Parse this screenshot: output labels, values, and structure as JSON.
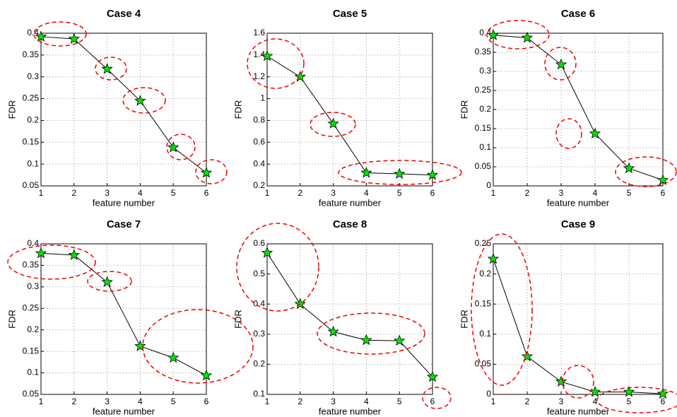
{
  "chart_data": [
    {
      "type": "line",
      "title": "Case 4",
      "xlabel": "feature number",
      "ylabel": "FDR",
      "x": [
        1,
        2,
        3,
        4,
        5,
        6
      ],
      "values": [
        0.392,
        0.387,
        0.318,
        0.245,
        0.138,
        0.08
      ],
      "xlim": [
        1,
        6
      ],
      "ylim": [
        0.05,
        0.4
      ],
      "xticks": [
        1,
        2,
        3,
        4,
        5,
        6
      ],
      "yticks": [
        0.05,
        0.1,
        0.15,
        0.2,
        0.25,
        0.3,
        0.35,
        0.4
      ],
      "grid": true,
      "line_color": "#000000",
      "marker": "star",
      "marker_color": "#00e600"
    },
    {
      "type": "line",
      "title": "Case 5",
      "xlabel": "feature number",
      "ylabel": "FDR",
      "x": [
        1,
        2,
        3,
        4,
        5,
        6
      ],
      "values": [
        1.39,
        1.2,
        0.77,
        0.32,
        0.31,
        0.3
      ],
      "xlim": [
        1,
        6
      ],
      "ylim": [
        0.2,
        1.6
      ],
      "xticks": [
        1,
        2,
        3,
        4,
        5,
        6
      ],
      "yticks": [
        0.2,
        0.4,
        0.6,
        0.8,
        1,
        1.2,
        1.4,
        1.6
      ],
      "grid": true,
      "line_color": "#000000",
      "marker": "star",
      "marker_color": "#00e600"
    },
    {
      "type": "line",
      "title": "Case 6",
      "xlabel": "feature number",
      "ylabel": "FDR",
      "x": [
        1,
        2,
        3,
        4,
        5,
        6
      ],
      "values": [
        0.395,
        0.388,
        0.318,
        0.137,
        0.046,
        0.015
      ],
      "xlim": [
        1,
        6
      ],
      "ylim": [
        0,
        0.4
      ],
      "xticks": [
        1,
        2,
        3,
        4,
        5,
        6
      ],
      "yticks": [
        0,
        0.05,
        0.1,
        0.15,
        0.2,
        0.25,
        0.3,
        0.35,
        0.4
      ],
      "grid": true,
      "line_color": "#000000",
      "marker": "star",
      "marker_color": "#00e600"
    },
    {
      "type": "line",
      "title": "Case 7",
      "xlabel": "feature number",
      "ylabel": "FDR",
      "x": [
        1,
        2,
        3,
        4,
        5,
        6
      ],
      "values": [
        0.378,
        0.374,
        0.311,
        0.162,
        0.135,
        0.094
      ],
      "xlim": [
        1,
        6
      ],
      "ylim": [
        0.05,
        0.4
      ],
      "xticks": [
        1,
        2,
        3,
        4,
        5,
        6
      ],
      "yticks": [
        0.05,
        0.1,
        0.15,
        0.2,
        0.25,
        0.3,
        0.35,
        0.4
      ],
      "grid": true,
      "line_color": "#000000",
      "marker": "star",
      "marker_color": "#00e600"
    },
    {
      "type": "line",
      "title": "Case 8",
      "xlabel": "feature number",
      "ylabel": "FDR",
      "x": [
        1,
        2,
        3,
        4,
        5,
        6
      ],
      "values": [
        0.57,
        0.4,
        0.308,
        0.28,
        0.278,
        0.158
      ],
      "xlim": [
        1,
        6
      ],
      "ylim": [
        0.1,
        0.6
      ],
      "xticks": [
        1,
        2,
        3,
        4,
        5,
        6
      ],
      "yticks": [
        0.1,
        0.2,
        0.3,
        0.4,
        0.5,
        0.6
      ],
      "grid": true,
      "line_color": "#000000",
      "marker": "star",
      "marker_color": "#00e600"
    },
    {
      "type": "line",
      "title": "Case 9",
      "xlabel": "feature number",
      "ylabel": "FDR",
      "x": [
        1,
        2,
        3,
        4,
        5,
        6
      ],
      "values": [
        0.225,
        0.063,
        0.021,
        0.004,
        0.004,
        0.001
      ],
      "xlim": [
        1,
        6
      ],
      "ylim": [
        0,
        0.25
      ],
      "xticks": [
        1,
        2,
        3,
        4,
        5,
        6
      ],
      "yticks": [
        0,
        0.05,
        0.1,
        0.15,
        0.2,
        0.25
      ],
      "grid": true,
      "line_color": "#000000",
      "marker": "star",
      "marker_color": "#00e600"
    }
  ]
}
